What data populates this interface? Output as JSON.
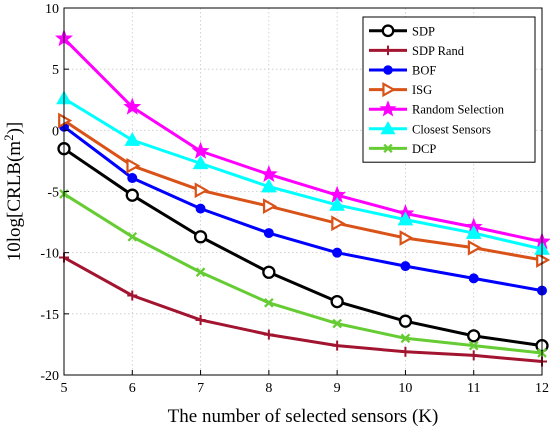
{
  "chart_data": {
    "type": "line",
    "title": "",
    "xlabel": "The number of selected sensors (K)",
    "ylabel": "10log[CRLB(m²)]",
    "x": [
      5,
      6,
      7,
      8,
      9,
      10,
      11,
      12
    ],
    "xlim": [
      5,
      12
    ],
    "ylim": [
      -20,
      10
    ],
    "xticks": [
      "5",
      "6",
      "7",
      "8",
      "9",
      "10",
      "11",
      "12"
    ],
    "yticks": [
      "10",
      "5",
      "0",
      "-5",
      "-10",
      "-15",
      "-20"
    ],
    "grid": true,
    "legend_position": "top-right",
    "series": [
      {
        "name": "SDP",
        "color": "#000000",
        "marker": "circle",
        "values": [
          -1.5,
          -5.3,
          -8.7,
          -11.6,
          -14.0,
          -15.6,
          -16.8,
          -17.6
        ]
      },
      {
        "name": "SDP Rand",
        "color": "#a2142f",
        "marker": "plus",
        "values": [
          -10.4,
          -13.5,
          -15.5,
          -16.7,
          -17.6,
          -18.1,
          -18.4,
          -18.9
        ]
      },
      {
        "name": "BOF",
        "color": "#0000ff",
        "marker": "dot",
        "values": [
          0.3,
          -3.9,
          -6.4,
          -8.4,
          -10.0,
          -11.1,
          -12.1,
          -13.1
        ]
      },
      {
        "name": "ISG",
        "color": "#d95319",
        "marker": "triangle-right",
        "values": [
          0.8,
          -2.9,
          -4.9,
          -6.2,
          -7.6,
          -8.8,
          -9.6,
          -10.6
        ]
      },
      {
        "name": "Random Selection",
        "color": "#ff00ff",
        "marker": "star",
        "values": [
          7.5,
          1.9,
          -1.7,
          -3.6,
          -5.3,
          -6.8,
          -7.9,
          -9.1
        ]
      },
      {
        "name": "Closest Sensors",
        "color": "#00ffff",
        "marker": "triangle-up",
        "values": [
          2.6,
          -0.8,
          -2.7,
          -4.6,
          -6.1,
          -7.3,
          -8.4,
          -9.7
        ]
      },
      {
        "name": "DCP",
        "color": "#66cc33",
        "marker": "cross",
        "values": [
          -5.2,
          -8.7,
          -11.6,
          -14.1,
          -15.8,
          -17.0,
          -17.6,
          -18.2
        ]
      }
    ]
  }
}
